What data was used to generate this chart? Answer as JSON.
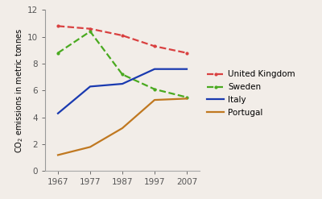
{
  "years": [
    1967,
    1977,
    1987,
    1997,
    2007
  ],
  "united_kingdom": [
    10.8,
    10.6,
    10.1,
    9.3,
    8.8
  ],
  "sweden": [
    8.8,
    10.4,
    7.2,
    6.1,
    5.5
  ],
  "italy": [
    4.3,
    6.3,
    6.5,
    7.6,
    7.6
  ],
  "portugal": [
    1.2,
    1.8,
    3.2,
    5.3,
    5.4
  ],
  "uk_color": "#d94040",
  "sweden_color": "#4aaa20",
  "italy_color": "#1a3ab0",
  "portugal_color": "#c07820",
  "background_color": "#f2ede8",
  "ylabel": "CO$_2$ emissions in metric tonnes",
  "ylim": [
    0,
    12
  ],
  "yticks": [
    0,
    2,
    4,
    6,
    8,
    10,
    12
  ],
  "legend_labels": [
    "United Kingdom",
    "Sweden",
    "Italy",
    "Portugal"
  ],
  "axis_fontsize": 7.5,
  "legend_fontsize": 7.5
}
